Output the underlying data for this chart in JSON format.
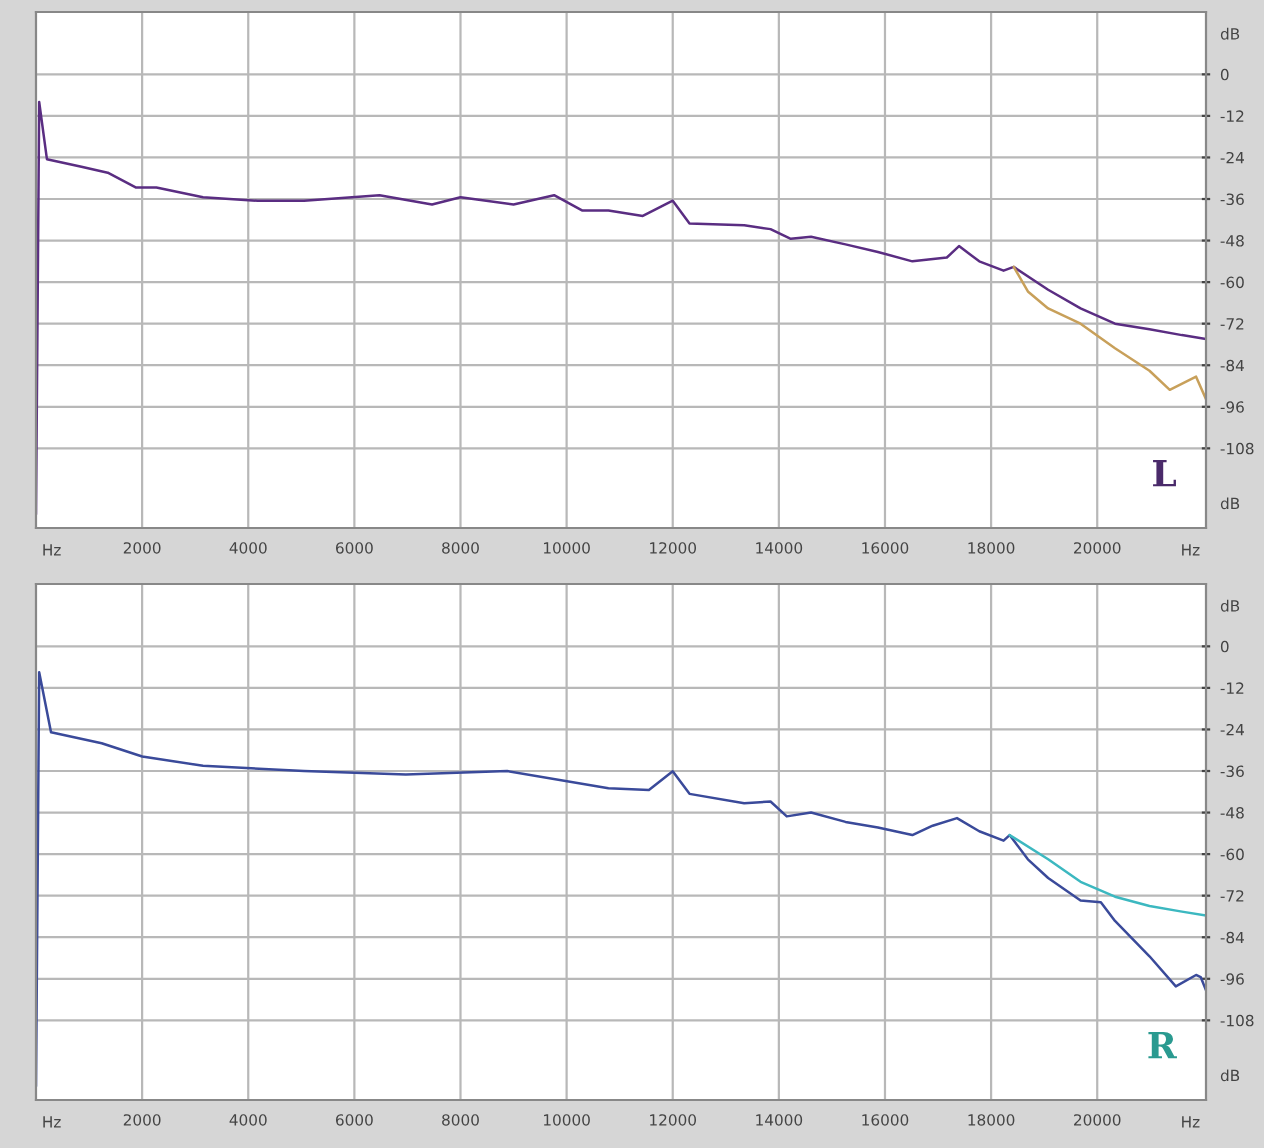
{
  "chart_data": [
    {
      "type": "line",
      "xlim": [
        0,
        22050
      ],
      "ylim": [
        -131,
        18
      ],
      "xticks": [
        2000,
        4000,
        6000,
        8000,
        10000,
        12000,
        14000,
        16000,
        18000,
        20000
      ],
      "yticks": [
        0,
        -12,
        -24,
        -36,
        -48,
        -60,
        -72,
        -84,
        -96,
        -108
      ],
      "xlabel": "Hz",
      "ylabel": "dB",
      "grid": true,
      "marker": "none",
      "line_style": "solid",
      "annotations": [
        "L"
      ],
      "series": [
        {
          "color": "#5a2d82",
          "x": [
            0,
            60,
            206,
            856,
            1352,
            1887,
            2269,
            3148,
            4179,
            5051,
            6474,
            7464,
            8000,
            9000,
            9764,
            10290,
            10788,
            11436,
            12000,
            12316,
            13347,
            13843,
            14225,
            14607,
            15256,
            15867,
            16516,
            17166,
            17395,
            17777,
            18235,
            18426,
            19075,
            19686,
            20335,
            20985,
            21596,
            22050
          ],
          "values": [
            -127,
            -8,
            -24.5,
            -26.7,
            -28.4,
            -32.7,
            -32.7,
            -35.5,
            -36.5,
            -36.5,
            -34.9,
            -37.6,
            -35.5,
            -37.6,
            -34.9,
            -39.3,
            -39.3,
            -40.9,
            -36.5,
            -43.1,
            -43.6,
            -44.7,
            -47.5,
            -46.9,
            -49.1,
            -51.3,
            -54,
            -52.9,
            -49.6,
            -54,
            -56.7,
            -55.6,
            -62.2,
            -67.6,
            -72,
            -73.6,
            -75.3,
            -76.4
          ]
        },
        {
          "color": "#c8a05a",
          "x": [
            18426,
            18693,
            19075,
            19686,
            20335,
            20985,
            21367,
            21863,
            22050
          ],
          "values": [
            -55.6,
            -62.7,
            -67.6,
            -72,
            -79.1,
            -85.6,
            -91.1,
            -87.3,
            -93.8
          ]
        }
      ]
    },
    {
      "type": "line",
      "xlim": [
        0,
        22050
      ],
      "ylim": [
        -131,
        18
      ],
      "xticks": [
        2000,
        4000,
        6000,
        8000,
        10000,
        12000,
        14000,
        16000,
        18000,
        20000
      ],
      "yticks": [
        0,
        -12,
        -24,
        -36,
        -48,
        -60,
        -72,
        -84,
        -96,
        -108
      ],
      "xlabel": "Hz",
      "ylabel": "dB",
      "grid": true,
      "marker": "none",
      "line_style": "solid",
      "annotations": [
        "R"
      ],
      "series": [
        {
          "color": "#3a4a9a",
          "x": [
            0,
            60,
            283,
            1238,
            2002,
            3148,
            5051,
            6970,
            8880,
            10788,
            11551,
            12000,
            12316,
            13347,
            13843,
            14149,
            14607,
            15256,
            15867,
            16516,
            16898,
            17357,
            17777,
            18235,
            18349,
            18693,
            19075,
            19686,
            20068,
            20335,
            20985,
            21481,
            21863,
            21950,
            22050
          ],
          "values": [
            -127,
            -7.5,
            -24.8,
            -28,
            -31.8,
            -34.5,
            -36,
            -37,
            -36,
            -41,
            -41.5,
            -36.1,
            -42.6,
            -45.3,
            -44.8,
            -49.1,
            -48,
            -50.7,
            -52.3,
            -54.5,
            -51.8,
            -49.6,
            -53.4,
            -56.1,
            -54.5,
            -61.5,
            -66.9,
            -73.4,
            -73.9,
            -79.3,
            -89.5,
            -98.2,
            -94.9,
            -95.5,
            -99.3
          ]
        },
        {
          "color": "#3cb8c0",
          "x": [
            18349,
            19075,
            19686,
            20335,
            20985,
            21596,
            22050
          ],
          "values": [
            -54.5,
            -61.5,
            -68,
            -72.3,
            -75,
            -76.6,
            -77.7
          ]
        }
      ]
    }
  ]
}
